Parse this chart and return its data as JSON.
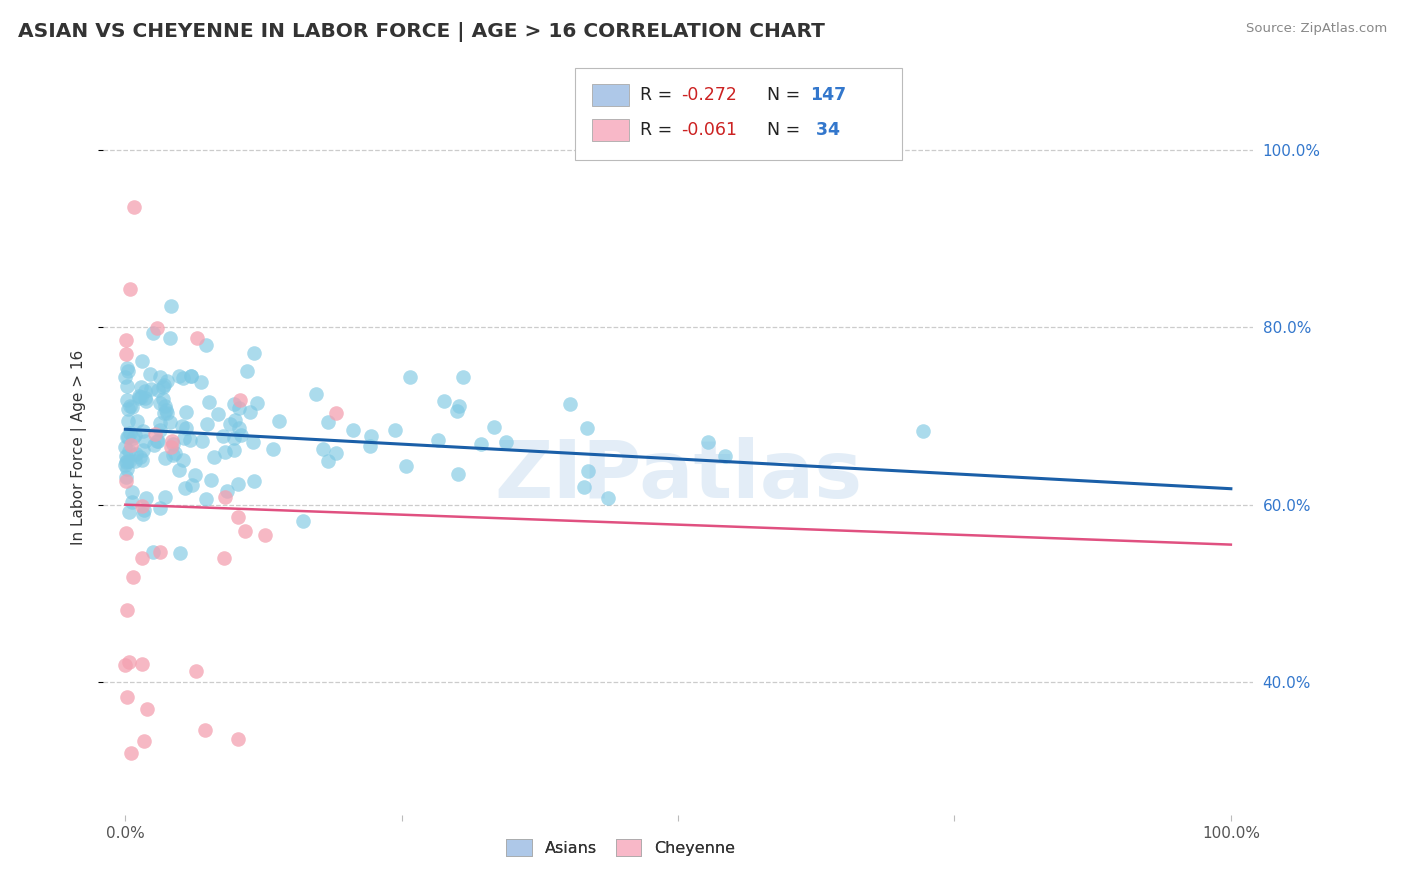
{
  "title": "ASIAN VS CHEYENNE IN LABOR FORCE | AGE > 16 CORRELATION CHART",
  "source": "Source: ZipAtlas.com",
  "ylabel": "In Labor Force | Age > 16",
  "xlim": [
    -0.02,
    1.02
  ],
  "ylim": [
    0.25,
    1.08
  ],
  "yticks": [
    0.4,
    0.6,
    0.8,
    1.0
  ],
  "ytick_labels": [
    "40.0%",
    "60.0%",
    "80.0%",
    "100.0%"
  ],
  "xticks": [
    0.0,
    0.25,
    0.5,
    0.75,
    1.0
  ],
  "xtick_labels": [
    "0.0%",
    "",
    "",
    "",
    "100.0%"
  ],
  "asian_R": -0.272,
  "asian_N": 147,
  "cheyenne_R": -0.061,
  "cheyenne_N": 34,
  "blue_scatter_color": "#7ec8e3",
  "blue_line_color": "#1a5fa8",
  "pink_scatter_color": "#f4a0b0",
  "pink_line_color": "#e05080",
  "background_color": "#ffffff",
  "grid_color": "#cccccc",
  "title_color": "#333333",
  "source_color": "#888888",
  "tick_color": "#3377cc",
  "legend_blue_fill": "#aec8e8",
  "legend_pink_fill": "#f8b8c8",
  "legend_border_color": "#aaaaaa",
  "watermark": "ZIPatlas",
  "watermark_color": "#c8ddf0",
  "watermark_alpha": 0.5,
  "asian_line_start_y": 0.685,
  "asian_line_end_y": 0.618,
  "cheyenne_line_start_y": 0.6,
  "cheyenne_line_end_y": 0.555
}
